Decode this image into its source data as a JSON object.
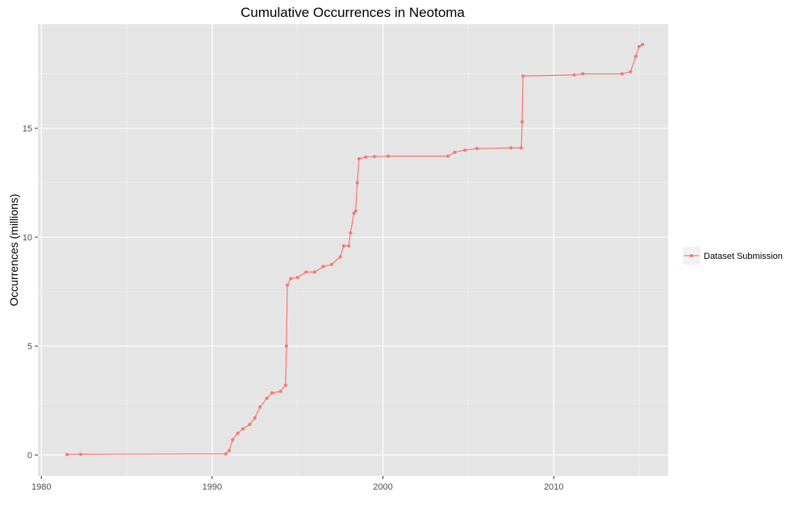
{
  "chart_data": {
    "type": "line",
    "title": "Cumulative Occurrences in Neotoma",
    "y_label": "Occurrences (millions)",
    "x": [
      1981.5,
      1982.3,
      1990.8,
      1991.0,
      1991.2,
      1991.5,
      1991.8,
      1992.2,
      1992.5,
      1992.8,
      1993.2,
      1993.5,
      1994.0,
      1994.3,
      1994.35,
      1994.4,
      1994.6,
      1995.0,
      1995.5,
      1996.0,
      1996.5,
      1997.0,
      1997.5,
      1997.7,
      1998.0,
      1998.1,
      1998.3,
      1998.4,
      1998.5,
      1998.6,
      1999.0,
      1999.5,
      2000.3,
      2003.8,
      2004.2,
      2004.8,
      2005.5,
      2007.5,
      2008.1,
      2008.15,
      2008.2,
      2011.2,
      2011.7,
      2014.0,
      2014.5,
      2014.8,
      2015.0,
      2015.2
    ],
    "series": [
      {
        "name": "Dataset Submission",
        "color": "#f8766d",
        "values": [
          0.02,
          0.03,
          0.05,
          0.2,
          0.7,
          1.0,
          1.2,
          1.4,
          1.7,
          2.2,
          2.6,
          2.85,
          2.92,
          3.2,
          5.0,
          7.8,
          8.1,
          8.15,
          8.4,
          8.4,
          8.65,
          8.75,
          9.1,
          9.6,
          9.6,
          10.2,
          11.1,
          11.2,
          12.5,
          13.6,
          13.68,
          13.7,
          13.72,
          13.72,
          13.9,
          14.0,
          14.07,
          14.1,
          14.1,
          15.3,
          17.4,
          17.45,
          17.5,
          17.5,
          17.6,
          18.3,
          18.75,
          18.85
        ]
      }
    ],
    "xlim": [
      1979.8,
      2016.7
    ],
    "ylim": [
      -0.96,
      19.78
    ],
    "xticks": [
      1980,
      1990,
      2000,
      2010
    ],
    "yticks": [
      0,
      5,
      10,
      15
    ],
    "grid": true
  }
}
